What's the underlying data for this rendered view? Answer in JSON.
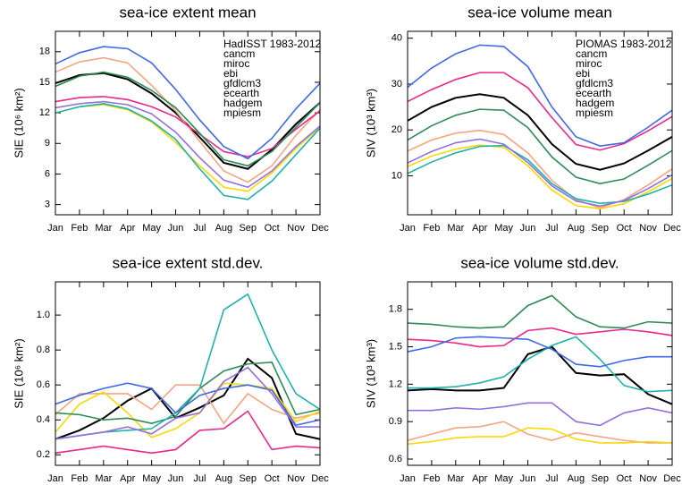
{
  "chart_data": [
    {
      "type": "line",
      "title": "sea-ice extent mean",
      "y_label": "SIE (10⁶ km²)",
      "categories": [
        "Jan",
        "Feb",
        "Mar",
        "Apr",
        "May",
        "Jun",
        "Jul",
        "Aug",
        "Sep",
        "Oct",
        "Nov",
        "Dec"
      ],
      "ylim": [
        2,
        20
      ],
      "yticks": [
        3,
        6,
        9,
        12,
        15,
        18
      ],
      "legend": "upper right",
      "series": [
        {
          "name": "HadISST 1983-2012",
          "color": "#000000",
          "values": [
            14.9,
            15.7,
            15.9,
            15.3,
            13.9,
            12.0,
            9.6,
            7.1,
            6.5,
            8.4,
            10.9,
            13.0
          ]
        },
        {
          "name": "cancm",
          "color": "#f4a582",
          "values": [
            16.0,
            17.0,
            17.4,
            16.9,
            14.7,
            12.2,
            9.2,
            6.3,
            5.2,
            6.8,
            9.8,
            12.3
          ]
        },
        {
          "name": "miroc",
          "color": "#e7298a",
          "values": [
            13.1,
            13.5,
            13.6,
            13.3,
            12.6,
            11.6,
            9.9,
            8.2,
            7.7,
            8.5,
            10.4,
            12.2
          ]
        },
        {
          "name": "ebi",
          "color": "#f5d90a",
          "values": [
            12.0,
            12.6,
            12.8,
            12.3,
            11.1,
            9.1,
            6.8,
            4.7,
            4.3,
            6.1,
            8.5,
            10.6
          ]
        },
        {
          "name": "gfdlcm3",
          "color": "#2e8b57",
          "values": [
            14.6,
            15.6,
            16.0,
            15.5,
            14.2,
            12.5,
            10.0,
            7.4,
            6.8,
            8.2,
            10.6,
            13.0
          ]
        },
        {
          "name": "ecearth",
          "color": "#20b2aa",
          "values": [
            12.0,
            12.6,
            12.9,
            12.4,
            11.2,
            9.4,
            6.5,
            3.9,
            3.5,
            5.3,
            7.9,
            10.5
          ]
        },
        {
          "name": "hadgem",
          "color": "#4169e1",
          "values": [
            16.8,
            17.9,
            18.5,
            18.3,
            16.9,
            14.3,
            11.3,
            8.7,
            7.5,
            9.5,
            12.4,
            14.9
          ]
        },
        {
          "name": "mpiesm",
          "color": "#9370db",
          "values": [
            12.5,
            12.9,
            13.1,
            12.8,
            11.9,
            10.1,
            7.6,
            5.4,
            4.7,
            6.3,
            8.7,
            10.7
          ]
        }
      ]
    },
    {
      "type": "line",
      "title": "sea-ice volume mean",
      "y_label": "SIV (10³ km³)",
      "categories": [
        "Jan",
        "Feb",
        "Mar",
        "Apr",
        "May",
        "Jun",
        "Jul",
        "Aug",
        "Sep",
        "Oct",
        "Nov",
        "Dec"
      ],
      "ylim": [
        1.5,
        41.5
      ],
      "yticks": [
        10,
        20,
        30,
        40
      ],
      "legend": "upper right",
      "series": [
        {
          "name": "PIOMAS 1983-2012",
          "color": "#000000",
          "values": [
            22.0,
            25.0,
            27.0,
            27.8,
            27.0,
            23.2,
            16.9,
            12.6,
            11.3,
            12.7,
            15.5,
            18.5
          ]
        },
        {
          "name": "cancm",
          "color": "#f4a582",
          "values": [
            15.4,
            17.8,
            19.3,
            19.9,
            19.0,
            15.0,
            9.0,
            4.8,
            3.0,
            4.8,
            8.0,
            11.5
          ]
        },
        {
          "name": "miroc",
          "color": "#e7298a",
          "values": [
            26.2,
            28.8,
            31.0,
            32.5,
            32.5,
            29.2,
            22.7,
            16.8,
            15.6,
            17.0,
            19.8,
            22.9
          ]
        },
        {
          "name": "ebi",
          "color": "#f5d90a",
          "values": [
            12.0,
            14.3,
            15.8,
            16.7,
            16.2,
            12.2,
            6.9,
            3.5,
            2.8,
            3.9,
            6.5,
            9.4
          ]
        },
        {
          "name": "gfdlcm3",
          "color": "#2e8b57",
          "values": [
            17.8,
            20.9,
            23.2,
            24.5,
            24.3,
            20.5,
            14.1,
            9.7,
            8.3,
            9.3,
            12.3,
            15.5
          ]
        },
        {
          "name": "ecearth",
          "color": "#20b2aa",
          "values": [
            10.5,
            13.0,
            15.0,
            16.4,
            16.6,
            13.5,
            8.3,
            5.0,
            4.0,
            4.4,
            6.0,
            8.0
          ]
        },
        {
          "name": "hadgem",
          "color": "#4169e1",
          "values": [
            29.3,
            33.5,
            36.6,
            38.5,
            38.2,
            33.8,
            25.0,
            18.5,
            16.5,
            17.2,
            20.6,
            24.3
          ]
        },
        {
          "name": "mpiesm",
          "color": "#9370db",
          "values": [
            12.8,
            15.3,
            17.2,
            18.0,
            16.9,
            12.9,
            7.8,
            4.5,
            3.4,
            4.6,
            7.2,
            10.2
          ]
        }
      ]
    },
    {
      "type": "line",
      "title": "sea-ice extent std.dev.",
      "y_label": "SIE (10⁶ km²)",
      "categories": [
        "Jan",
        "Feb",
        "Mar",
        "Apr",
        "May",
        "Jun",
        "Jul",
        "Aug",
        "Sep",
        "Oct",
        "Nov",
        "Dec"
      ],
      "ylim": [
        0.14,
        1.19
      ],
      "yticks": [
        0.2,
        0.4,
        0.6,
        0.8,
        {
          "value": 1,
          "label": "1.0"
        }
      ],
      "series": [
        {
          "color": "#000000",
          "values": [
            0.29,
            0.34,
            0.41,
            0.51,
            0.58,
            0.41,
            0.47,
            0.54,
            0.75,
            0.64,
            0.32,
            0.29
          ]
        },
        {
          "color": "#f4a582",
          "values": [
            0.43,
            0.55,
            0.55,
            0.55,
            0.46,
            0.6,
            0.6,
            0.38,
            0.55,
            0.46,
            0.41,
            0.44
          ]
        },
        {
          "color": "#e7298a",
          "values": [
            0.21,
            0.23,
            0.25,
            0.23,
            0.21,
            0.23,
            0.34,
            0.35,
            0.45,
            0.23,
            0.25,
            0.24
          ]
        },
        {
          "color": "#f5d90a",
          "values": [
            0.33,
            0.49,
            0.56,
            0.44,
            0.3,
            0.35,
            0.44,
            0.61,
            0.6,
            0.58,
            0.39,
            0.45
          ]
        },
        {
          "color": "#2e8b57",
          "values": [
            0.44,
            0.43,
            0.4,
            0.41,
            0.38,
            0.42,
            0.58,
            0.68,
            0.72,
            0.73,
            0.43,
            0.46
          ]
        },
        {
          "color": "#20b2aa",
          "values": [
            0.29,
            0.31,
            0.33,
            0.34,
            0.35,
            0.44,
            0.58,
            1.03,
            1.12,
            0.8,
            0.55,
            0.46
          ]
        },
        {
          "color": "#4169e1",
          "values": [
            0.49,
            0.54,
            0.58,
            0.61,
            0.58,
            0.44,
            0.54,
            0.58,
            0.6,
            0.57,
            0.37,
            0.4
          ]
        },
        {
          "color": "#9370db",
          "values": [
            0.29,
            0.31,
            0.33,
            0.36,
            0.32,
            0.41,
            0.44,
            0.62,
            0.7,
            0.55,
            0.36,
            0.36
          ]
        }
      ]
    },
    {
      "type": "line",
      "title": "sea-ice volume std.dev.",
      "y_label": "SIV (10³ km³)",
      "categories": [
        "Jan",
        "Feb",
        "Mar",
        "Apr",
        "May",
        "Jun",
        "Jul",
        "Aug",
        "Sep",
        "Oct",
        "Nov",
        "Dec"
      ],
      "ylim": [
        0.55,
        2.02
      ],
      "yticks": [
        0.6,
        0.9,
        1.2,
        1.5,
        1.8
      ],
      "series": [
        {
          "color": "#000000",
          "values": [
            1.15,
            1.16,
            1.15,
            1.15,
            1.17,
            1.44,
            1.5,
            1.29,
            1.27,
            1.28,
            1.12,
            1.04
          ]
        },
        {
          "color": "#f4a582",
          "values": [
            0.75,
            0.8,
            0.85,
            0.86,
            0.9,
            0.8,
            0.75,
            0.81,
            0.78,
            0.75,
            0.73,
            0.73
          ]
        },
        {
          "color": "#e7298a",
          "values": [
            1.56,
            1.55,
            1.53,
            1.5,
            1.51,
            1.63,
            1.65,
            1.6,
            1.62,
            1.64,
            1.62,
            1.59
          ]
        },
        {
          "color": "#f5d90a",
          "values": [
            0.72,
            0.74,
            0.77,
            0.78,
            0.78,
            0.85,
            0.84,
            0.76,
            0.73,
            0.73,
            0.74,
            0.73
          ]
        },
        {
          "color": "#2e8b57",
          "values": [
            1.69,
            1.68,
            1.66,
            1.65,
            1.66,
            1.83,
            1.91,
            1.74,
            1.66,
            1.65,
            1.7,
            1.69
          ]
        },
        {
          "color": "#20b2aa",
          "values": [
            1.17,
            1.17,
            1.18,
            1.21,
            1.26,
            1.4,
            1.51,
            1.58,
            1.4,
            1.19,
            1.14,
            1.15
          ]
        },
        {
          "color": "#4169e1",
          "values": [
            1.46,
            1.5,
            1.57,
            1.58,
            1.57,
            1.56,
            1.48,
            1.36,
            1.34,
            1.39,
            1.42,
            1.42
          ]
        },
        {
          "color": "#9370db",
          "values": [
            0.99,
            0.99,
            1.01,
            1.0,
            1.02,
            1.05,
            1.05,
            0.9,
            0.87,
            0.97,
            1.01,
            0.97
          ]
        }
      ]
    }
  ]
}
